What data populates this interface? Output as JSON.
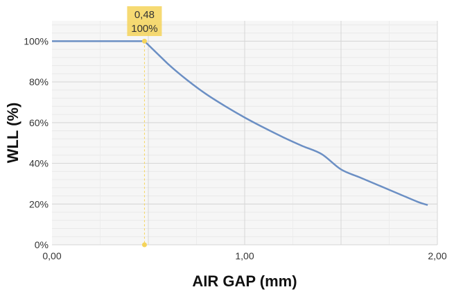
{
  "chart_data": {
    "type": "line",
    "xlabel": "AIR GAP (mm)",
    "ylabel": "WLL (%)",
    "xlim": [
      0,
      2
    ],
    "ylim": [
      0,
      110
    ],
    "x_ticks": [
      {
        "value": 0,
        "label": "0,00"
      },
      {
        "value": 1,
        "label": "1,00"
      },
      {
        "value": 2,
        "label": "2,00"
      }
    ],
    "y_ticks": [
      {
        "value": 0,
        "label": "0%"
      },
      {
        "value": 20,
        "label": "20%"
      },
      {
        "value": 40,
        "label": "40%"
      },
      {
        "value": 60,
        "label": "60%"
      },
      {
        "value": 80,
        "label": "80%"
      },
      {
        "value": 100,
        "label": "100%"
      }
    ],
    "grid": true,
    "series": [
      {
        "color": "#6b8fc4",
        "points": [
          [
            0.0,
            100
          ],
          [
            0.48,
            100
          ],
          [
            0.6,
            89
          ],
          [
            0.7,
            81
          ],
          [
            0.8,
            74
          ],
          [
            0.9,
            68
          ],
          [
            1.0,
            62.5
          ],
          [
            1.1,
            57.5
          ],
          [
            1.2,
            52.8
          ],
          [
            1.3,
            48.5
          ],
          [
            1.4,
            44.5
          ],
          [
            1.5,
            37
          ],
          [
            1.6,
            33
          ],
          [
            1.7,
            29
          ],
          [
            1.8,
            25
          ],
          [
            1.9,
            21
          ],
          [
            1.95,
            19.5
          ]
        ]
      }
    ],
    "highlight": {
      "x": 0.48,
      "y": 100,
      "x_label": "0,48",
      "y_label": "100%",
      "color": "#f5d45a"
    }
  }
}
